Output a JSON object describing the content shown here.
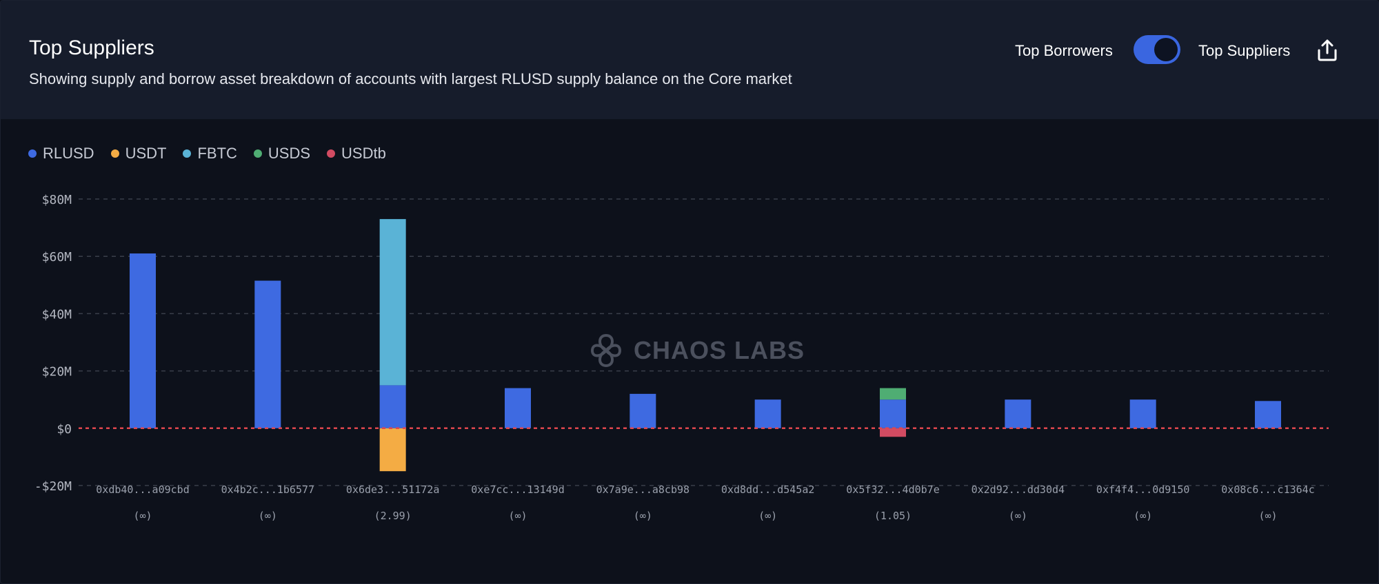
{
  "header": {
    "title": "Top Suppliers",
    "subtitle": "Showing supply and borrow asset breakdown of accounts with largest RLUSD supply balance on the Core market",
    "toggle_left_label": "Top Borrowers",
    "toggle_right_label": "Top Suppliers",
    "toggle_state": "Top Suppliers",
    "share_icon": "share-icon"
  },
  "watermark": {
    "text": "CHAOS LABS"
  },
  "colors": {
    "RLUSD": "#3e6ae1",
    "USDT": "#f4ac44",
    "FBTC": "#5ab3d6",
    "USDS": "#4fad73",
    "USDtb": "#d24b62"
  },
  "chart_data": {
    "type": "bar",
    "stacked": true,
    "categories": [
      "0xdb40...a09cbd",
      "0x4b2c...1b6577",
      "0x6de3...51172a",
      "0xe7cc...13149d",
      "0x7a9e...a8cb98",
      "0xd8dd...d545a2",
      "0x5f32...4d0b7e",
      "0x2d92...dd30d4",
      "0xf4f4...0d9150",
      "0x08c6...c1364c"
    ],
    "category_sublabels": [
      "(∞)",
      "(∞)",
      "(2.99)",
      "(∞)",
      "(∞)",
      "(∞)",
      "(1.05)",
      "(∞)",
      "(∞)",
      "(∞)"
    ],
    "series": [
      {
        "name": "RLUSD",
        "values": [
          61,
          51.5,
          15,
          14,
          12,
          10,
          10,
          10,
          10,
          9.5
        ]
      },
      {
        "name": "USDT",
        "values": [
          0,
          0,
          -15,
          0,
          0,
          0,
          0,
          0,
          0,
          0
        ]
      },
      {
        "name": "FBTC",
        "values": [
          0,
          0,
          58,
          0,
          0,
          0,
          0,
          0,
          0,
          0
        ]
      },
      {
        "name": "USDS",
        "values": [
          0,
          0,
          0,
          0,
          0,
          0,
          4,
          0,
          0,
          0
        ]
      },
      {
        "name": "USDtb",
        "values": [
          0,
          0,
          0,
          0,
          0,
          0,
          -3,
          0,
          0,
          0
        ]
      }
    ],
    "y_ticks": [
      -20,
      0,
      20,
      40,
      60,
      80
    ],
    "y_tick_labels": [
      "-$20M",
      "$0",
      "$20M",
      "$40M",
      "$60M",
      "$80M"
    ],
    "ylim": [
      -20,
      80
    ],
    "unit": "$M",
    "legend_position": "top-left",
    "grid": true,
    "zero_line": "dashed red"
  }
}
